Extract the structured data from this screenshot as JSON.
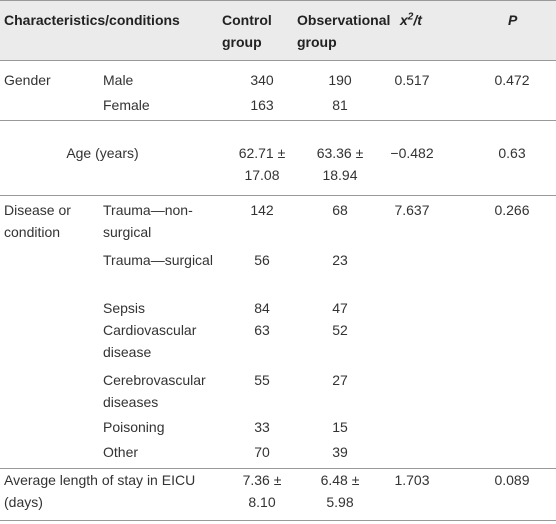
{
  "header": {
    "characteristics": "Characteristics/conditions",
    "control": "Control group",
    "observational": "Observational group",
    "stat": {
      "base": "x",
      "sup": "2",
      "rest": "/t"
    },
    "p": "P"
  },
  "table": {
    "rows": [
      {
        "group": "Gender",
        "item": "Male",
        "control": "340",
        "observational": "190",
        "stat": "0.517",
        "p": "0.472"
      },
      {
        "item": "Female",
        "control": "163",
        "observational": "81"
      },
      {
        "span": "Age (years)",
        "control": "62.71 ± 17.08",
        "observational": "63.36 ± 18.94",
        "stat": "−0.482",
        "p": "0.63"
      },
      {
        "group": "Disease or condition",
        "item": "Trauma—non-surgical",
        "control": "142",
        "observational": "68",
        "stat": "7.637",
        "p": "0.266"
      },
      {
        "item": "Trauma—surgical",
        "control": "56",
        "observational": "23"
      },
      {
        "item": "Sepsis",
        "control": "84",
        "observational": "47"
      },
      {
        "item": "Cardiovascular disease",
        "control": "63",
        "observational": "52"
      },
      {
        "item": "Cerebrovascular diseases",
        "control": "55",
        "observational": "27"
      },
      {
        "item": "Poisoning",
        "control": "33",
        "observational": "15"
      },
      {
        "item": "Other",
        "control": "70",
        "observational": "39"
      },
      {
        "span": "Average length of stay in EICU (days)",
        "control": "7.36 ± 8.10",
        "observational": "6.48 ± 5.98",
        "stat": "1.703",
        "p": "0.089"
      }
    ]
  }
}
